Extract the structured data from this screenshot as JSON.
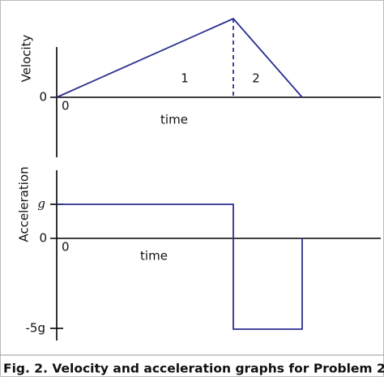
{
  "caption": "Fig. 2. Velocity and acceleration graphs for Problem 2.",
  "velocity_graph": {
    "y_label": "Velocity",
    "x_label": "time",
    "y_tick": "0",
    "origin": "0",
    "phase_labels": [
      "1",
      "2"
    ]
  },
  "acceleration_graph": {
    "y_label": "Acceleration",
    "x_label": "time",
    "y_ticks": [
      "g",
      "0",
      "-5g"
    ],
    "origin": "0"
  }
}
